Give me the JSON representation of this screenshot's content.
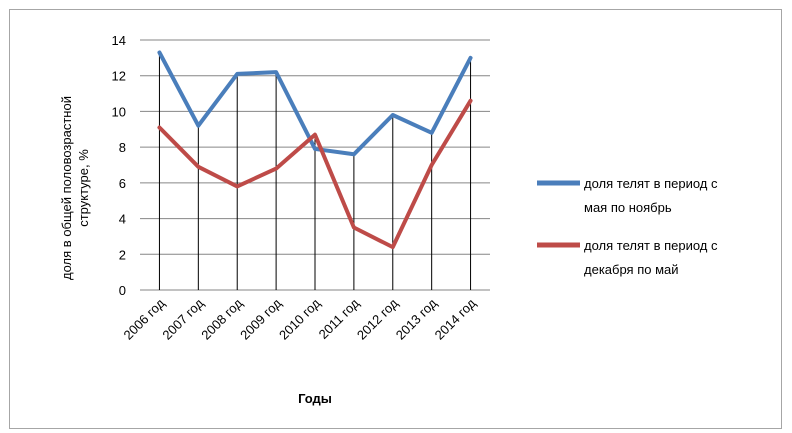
{
  "chart_data": {
    "type": "line",
    "title": "",
    "xlabel": "Годы",
    "ylabel_lines": [
      "доля в общей половозрастной",
      "структуре, %"
    ],
    "categories": [
      "2006 год",
      "2007 год",
      "2008 год",
      "2009 год",
      "2010 год",
      "2011 год",
      "2012 год",
      "2013 год",
      "2014 год"
    ],
    "ylim": [
      0,
      14
    ],
    "yticks": [
      "0",
      "2",
      "4",
      "6",
      "8",
      "10",
      "12",
      "14"
    ],
    "grid": true,
    "legend_position": "right",
    "series": [
      {
        "name_lines": [
          "доля телят в период с",
          "мая по ноябрь"
        ],
        "color": "#4a7ebb",
        "values": [
          13.3,
          9.2,
          12.1,
          12.2,
          7.9,
          7.6,
          9.8,
          8.8,
          13.0
        ]
      },
      {
        "name_lines": [
          "доля телят в период с",
          "декабря по май"
        ],
        "color": "#be4b48",
        "values": [
          9.1,
          6.9,
          5.8,
          6.8,
          8.7,
          3.5,
          2.4,
          7.0,
          10.6
        ]
      }
    ]
  }
}
